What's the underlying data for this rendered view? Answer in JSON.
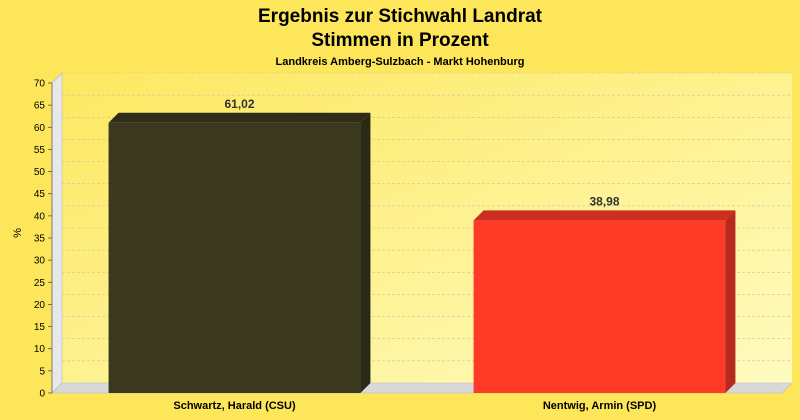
{
  "chart_data": {
    "type": "bar",
    "title": "Ergebnis zur Stichwahl Landrat",
    "title2": "Stimmen in Prozent",
    "subtitle": "Landkreis Amberg-Sulzbach - Markt Hohenburg",
    "ylabel": "%",
    "ylim": [
      0,
      70
    ],
    "ytick_step": 5,
    "grid": true,
    "categories": [
      "Schwartz, Harald (CSU)",
      "Nentwig, Armin (SPD)"
    ],
    "values": [
      61.02,
      38.98
    ],
    "value_labels": [
      "61,02",
      "38,98"
    ],
    "colors": [
      "#3b3820",
      "#ff3b28"
    ]
  }
}
